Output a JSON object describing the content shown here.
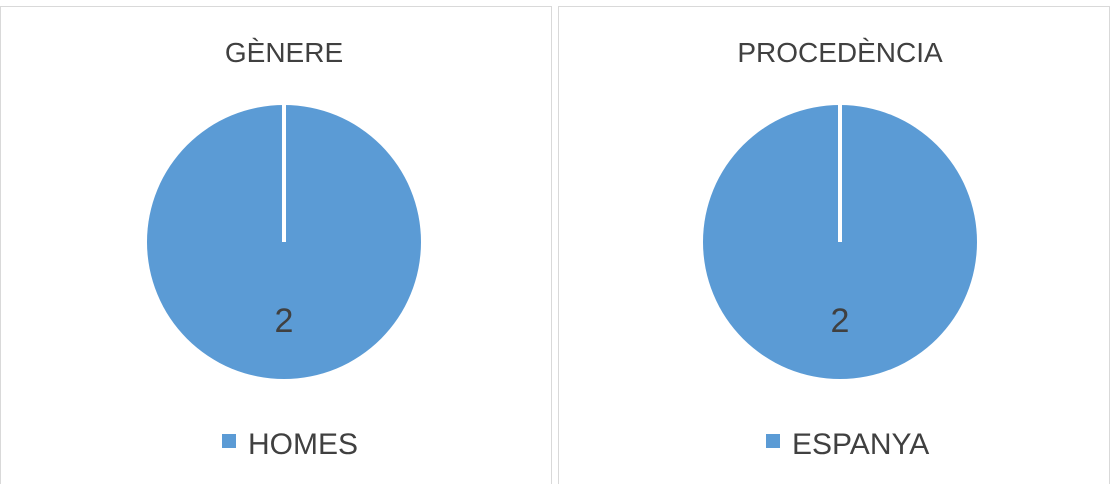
{
  "chart_data": [
    {
      "type": "pie",
      "title": "GÈNERE",
      "slices": [
        {
          "label": "HOMES",
          "value": 2,
          "data_label": "2",
          "color": "#5b9bd5"
        }
      ],
      "legend": {
        "position": "bottom",
        "entries": [
          "HOMES"
        ]
      }
    },
    {
      "type": "pie",
      "title": "PROCEDÈNCIA",
      "slices": [
        {
          "label": "ESPANYA",
          "value": 2,
          "data_label": "2",
          "color": "#5b9bd5"
        }
      ],
      "legend": {
        "position": "bottom",
        "entries": [
          "ESPANYA"
        ]
      }
    }
  ],
  "colors": {
    "text": "#404040",
    "border": "#d9d9d9",
    "slice_separator": "#ffffff"
  }
}
